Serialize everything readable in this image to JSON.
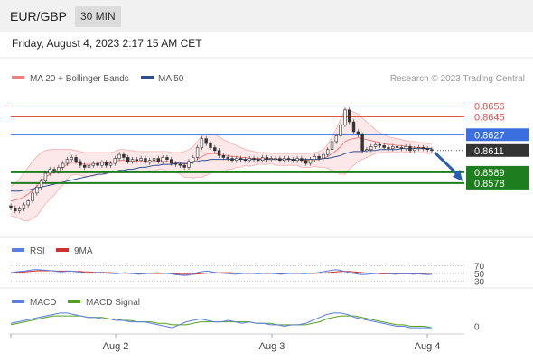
{
  "header": {
    "symbol": "EUR/GBP",
    "timeframe": "30 MIN",
    "datetime": "Friday, August 4, 2023 2:17:15 AM CET"
  },
  "colors": {
    "bollinger": "#f08080",
    "ma50": "#2f4f8f",
    "resistance": "#e05050",
    "pivot": "#3b6fe0",
    "support": "#1e7d1e",
    "current": "#333333",
    "arrow": "#2a5db0",
    "rsi": "#5b7ee0",
    "macd": "#5b7ee0",
    "macd_signal": "#55a020",
    "rsi_ma": "#d03030"
  },
  "chart_data": [
    {
      "type": "line",
      "panel": "price",
      "legend": [
        "MA 20 + Bollinger Bands",
        "MA 50"
      ],
      "watermark": "Research © 2023 Trading Central",
      "ylim": [
        0.8535,
        0.8672
      ],
      "resistance_levels": [
        "0.8656",
        "0.8645"
      ],
      "pivot": "0.8627",
      "current_price": "0.8611",
      "support_levels": [
        "0.8589",
        "0.8578"
      ],
      "x_ticks": [
        "Aug 2",
        "Aug 3",
        "Aug 4"
      ],
      "close": [
        0.8553,
        0.855,
        0.8552,
        0.8556,
        0.856,
        0.8568,
        0.8574,
        0.858,
        0.8588,
        0.8592,
        0.859,
        0.8594,
        0.8598,
        0.8602,
        0.8604,
        0.86,
        0.8596,
        0.8594,
        0.8596,
        0.8598,
        0.8596,
        0.8599,
        0.8596,
        0.8598,
        0.8603,
        0.8607,
        0.8604,
        0.86,
        0.8602,
        0.8601,
        0.8603,
        0.8599,
        0.8601,
        0.8603,
        0.86,
        0.8604,
        0.8602,
        0.8598,
        0.8597,
        0.8596,
        0.8594,
        0.86,
        0.8604,
        0.8614,
        0.8623,
        0.8618,
        0.8614,
        0.8611,
        0.8606,
        0.8604,
        0.8603,
        0.8601,
        0.8603,
        0.8602,
        0.8601,
        0.8603,
        0.8602,
        0.8601,
        0.8604,
        0.8602,
        0.8603,
        0.8603,
        0.8601,
        0.8603,
        0.8602,
        0.8601,
        0.8603,
        0.8601,
        0.8598,
        0.8602,
        0.8605,
        0.8603,
        0.8607,
        0.8612,
        0.862,
        0.8626,
        0.8637,
        0.8652,
        0.864,
        0.863,
        0.8627,
        0.8611,
        0.8612,
        0.8615,
        0.8617,
        0.8616,
        0.8614,
        0.8613,
        0.8615,
        0.8614,
        0.8613,
        0.8615,
        0.8611,
        0.8613,
        0.8614,
        0.8613,
        0.8612,
        0.8611
      ],
      "ma20": [
        0.856,
        0.8561,
        0.8562,
        0.8564,
        0.8567,
        0.8571,
        0.8575,
        0.858,
        0.8584,
        0.8587,
        0.8589,
        0.8592,
        0.8594,
        0.8597,
        0.8599,
        0.8599,
        0.8598,
        0.8597,
        0.8597,
        0.8597,
        0.8598,
        0.8598,
        0.8598,
        0.8599,
        0.86,
        0.8601,
        0.8601,
        0.86,
        0.86,
        0.86,
        0.86,
        0.86,
        0.86,
        0.86,
        0.8601,
        0.8601,
        0.86,
        0.8599,
        0.8599,
        0.8598,
        0.8597,
        0.8598,
        0.8599,
        0.8602,
        0.8605,
        0.8607,
        0.8608,
        0.8608,
        0.8607,
        0.8606,
        0.8606,
        0.8605,
        0.8605,
        0.8604,
        0.8604,
        0.8603,
        0.8603,
        0.8603,
        0.8603,
        0.8603,
        0.8603,
        0.8602,
        0.8602,
        0.8602,
        0.8602,
        0.8602,
        0.8602,
        0.8601,
        0.8601,
        0.8601,
        0.8602,
        0.8602,
        0.8603,
        0.8605,
        0.8608,
        0.8611,
        0.8615,
        0.862,
        0.8622,
        0.8623,
        0.8624,
        0.8623,
        0.8622,
        0.8621,
        0.862,
        0.8619,
        0.8618,
        0.8617,
        0.8617,
        0.8616,
        0.8616,
        0.8615,
        0.8615,
        0.8614,
        0.8614,
        0.8614,
        0.8613,
        0.8613
      ],
      "bb_upper": [
        0.8575,
        0.8578,
        0.8582,
        0.8588,
        0.8594,
        0.86,
        0.8605,
        0.8609,
        0.8611,
        0.8612,
        0.8612,
        0.8612,
        0.8612,
        0.8612,
        0.8612,
        0.8611,
        0.861,
        0.8609,
        0.8609,
        0.8609,
        0.8609,
        0.8609,
        0.8609,
        0.8609,
        0.861,
        0.8612,
        0.8612,
        0.8611,
        0.8611,
        0.861,
        0.861,
        0.861,
        0.861,
        0.861,
        0.861,
        0.861,
        0.861,
        0.8609,
        0.8609,
        0.8609,
        0.861,
        0.8612,
        0.8615,
        0.862,
        0.8626,
        0.8628,
        0.8628,
        0.8627,
        0.8625,
        0.8622,
        0.862,
        0.8618,
        0.8616,
        0.8614,
        0.8612,
        0.8611,
        0.861,
        0.8609,
        0.8609,
        0.8609,
        0.8608,
        0.8608,
        0.8608,
        0.8608,
        0.8608,
        0.8608,
        0.8608,
        0.8608,
        0.8608,
        0.8608,
        0.8609,
        0.861,
        0.8612,
        0.8617,
        0.8625,
        0.8633,
        0.8643,
        0.8653,
        0.8652,
        0.865,
        0.8648,
        0.8644,
        0.864,
        0.8636,
        0.8632,
        0.8629,
        0.8627,
        0.8625,
        0.8624,
        0.8623,
        0.8622,
        0.8621,
        0.862,
        0.862,
        0.8619,
        0.8619,
        0.8618,
        0.8618
      ],
      "bb_lower": [
        0.8545,
        0.8544,
        0.8542,
        0.854,
        0.854,
        0.8542,
        0.8545,
        0.8551,
        0.8557,
        0.8562,
        0.8566,
        0.8572,
        0.8576,
        0.8582,
        0.8586,
        0.8587,
        0.8586,
        0.8585,
        0.8585,
        0.8585,
        0.8587,
        0.8587,
        0.8587,
        0.8589,
        0.859,
        0.859,
        0.859,
        0.8589,
        0.8589,
        0.859,
        0.859,
        0.859,
        0.859,
        0.859,
        0.8592,
        0.8592,
        0.859,
        0.8589,
        0.8589,
        0.8587,
        0.8584,
        0.8584,
        0.8583,
        0.8584,
        0.8584,
        0.8586,
        0.8588,
        0.8589,
        0.8589,
        0.859,
        0.8592,
        0.8592,
        0.8594,
        0.8594,
        0.8596,
        0.8595,
        0.8596,
        0.8597,
        0.8597,
        0.8597,
        0.8598,
        0.8596,
        0.8596,
        0.8596,
        0.8596,
        0.8596,
        0.8596,
        0.8594,
        0.8594,
        0.8594,
        0.8595,
        0.8594,
        0.8594,
        0.8593,
        0.8591,
        0.8589,
        0.8587,
        0.8587,
        0.8592,
        0.8596,
        0.86,
        0.8602,
        0.8604,
        0.8606,
        0.8608,
        0.8609,
        0.8609,
        0.8609,
        0.861,
        0.8609,
        0.861,
        0.8609,
        0.861,
        0.8608,
        0.8609,
        0.8609,
        0.8608,
        0.8608
      ],
      "ma50": [
        0.857,
        0.857,
        0.857,
        0.8571,
        0.8571,
        0.8572,
        0.8573,
        0.8574,
        0.8575,
        0.8576,
        0.8577,
        0.8578,
        0.8579,
        0.858,
        0.8581,
        0.8582,
        0.8583,
        0.8584,
        0.8585,
        0.8586,
        0.8587,
        0.8587,
        0.8588,
        0.8589,
        0.859,
        0.8591,
        0.8591,
        0.8592,
        0.8592,
        0.8593,
        0.8594,
        0.8594,
        0.8595,
        0.8596,
        0.8596,
        0.8597,
        0.8597,
        0.8597,
        0.8598,
        0.8598,
        0.8598,
        0.8598,
        0.8599,
        0.86,
        0.8601,
        0.8601,
        0.8602,
        0.8602,
        0.8602,
        0.8602,
        0.8602,
        0.8602,
        0.8602,
        0.8602,
        0.8602,
        0.8602,
        0.8602,
        0.8602,
        0.8602,
        0.8602,
        0.8602,
        0.8602,
        0.8602,
        0.8602,
        0.8602,
        0.8602,
        0.8602,
        0.8602,
        0.8602,
        0.8602,
        0.8602,
        0.8602,
        0.8603,
        0.8603,
        0.8604,
        0.8605,
        0.8606,
        0.8608,
        0.8609,
        0.861,
        0.861,
        0.861,
        0.8611,
        0.8611,
        0.8611,
        0.8612,
        0.8612,
        0.8612,
        0.8612,
        0.8612,
        0.8613,
        0.8613,
        0.8613,
        0.8613,
        0.8613,
        0.8613,
        0.8613,
        0.8613
      ]
    },
    {
      "type": "line",
      "panel": "rsi",
      "legend": [
        "RSI",
        "9MA"
      ],
      "levels": [
        70,
        50,
        30
      ],
      "ylim": [
        20,
        80
      ],
      "rsi": [
        52,
        54,
        55,
        56,
        58,
        60,
        60,
        59,
        58,
        57,
        55,
        54,
        55,
        56,
        55,
        53,
        52,
        51,
        52,
        53,
        52,
        51,
        50,
        49,
        51,
        52,
        50,
        49,
        48,
        49,
        50,
        51,
        52,
        51,
        50,
        49,
        47,
        46,
        45,
        46,
        50,
        53,
        55,
        56,
        54,
        52,
        51,
        50,
        49,
        48,
        49,
        50,
        51,
        50,
        49,
        50,
        51,
        50,
        49,
        48,
        49,
        50,
        51,
        50,
        49,
        50,
        51,
        52,
        54,
        56,
        58,
        60,
        58,
        55,
        52,
        50,
        48,
        47,
        48,
        49,
        50,
        51,
        50,
        49,
        48,
        49,
        50,
        49,
        48,
        49,
        48,
        47,
        48
      ],
      "rsi_ma": [
        52,
        53,
        53,
        54,
        55,
        56,
        57,
        57,
        57,
        57,
        56,
        56,
        56,
        56,
        55,
        55,
        54,
        54,
        53,
        53,
        53,
        52,
        52,
        51,
        51,
        51,
        51,
        50,
        50,
        50,
        50,
        50,
        50,
        50,
        50,
        50,
        49,
        48,
        48,
        48,
        48,
        49,
        50,
        51,
        52,
        52,
        52,
        52,
        52,
        51,
        51,
        50,
        50,
        50,
        50,
        50,
        50,
        50,
        50,
        50,
        50,
        50,
        50,
        50,
        50,
        50,
        50,
        51,
        51,
        52,
        53,
        54,
        55,
        55,
        55,
        54,
        53,
        52,
        51,
        50,
        50,
        49,
        49,
        49,
        49,
        49,
        49,
        49,
        49,
        49,
        49,
        48,
        48
      ]
    },
    {
      "type": "line",
      "panel": "macd",
      "legend": [
        "MACD",
        "MACD Signal"
      ],
      "zero_label": "0",
      "ylim": [
        -0.0004,
        0.0012
      ],
      "macd": [
        0.0002,
        0.0003,
        0.0004,
        0.0005,
        0.0006,
        0.0007,
        0.0008,
        0.0009,
        0.0009,
        0.0008,
        0.0007,
        0.0006,
        0.0006,
        0.0005,
        0.0005,
        0.0004,
        0.0004,
        0.0003,
        0.0003,
        0.0003,
        0.0002,
        0.0001,
        0.0,
        -0.0001,
        0.0001,
        0.0003,
        0.0004,
        0.0005,
        0.0004,
        0.0003,
        0.0003,
        0.0004,
        0.0003,
        0.0002,
        0.0003,
        0.0002,
        0.0002,
        0.0001,
        0.0001,
        0.0,
        0.0001,
        0.0001,
        0.0002,
        0.0004,
        0.0006,
        0.0008,
        0.0009,
        0.0009,
        0.0008,
        0.0006,
        0.0005,
        0.0004,
        0.0003,
        0.0002,
        0.0001,
        0.0,
        0.0,
        -0.0001,
        -0.0001,
        -0.0001,
        -0.0001
      ],
      "macd_signal": [
        0.0001,
        0.0002,
        0.0003,
        0.0004,
        0.0005,
        0.0006,
        0.0007,
        0.0007,
        0.0007,
        0.0007,
        0.0007,
        0.0006,
        0.0006,
        0.0006,
        0.0005,
        0.0005,
        0.0004,
        0.0004,
        0.0003,
        0.0003,
        0.0003,
        0.0002,
        0.0002,
        0.0001,
        0.0001,
        0.0001,
        0.0002,
        0.0003,
        0.0003,
        0.0003,
        0.0003,
        0.0003,
        0.0003,
        0.0003,
        0.0003,
        0.0002,
        0.0002,
        0.0002,
        0.0001,
        0.0001,
        0.0001,
        0.0001,
        0.0001,
        0.0002,
        0.0003,
        0.0005,
        0.0006,
        0.0007,
        0.0007,
        0.0007,
        0.0006,
        0.0005,
        0.0004,
        0.0003,
        0.0002,
        0.0001,
        0.0001,
        0.0,
        0.0,
        0.0,
        -0.0001
      ]
    }
  ]
}
